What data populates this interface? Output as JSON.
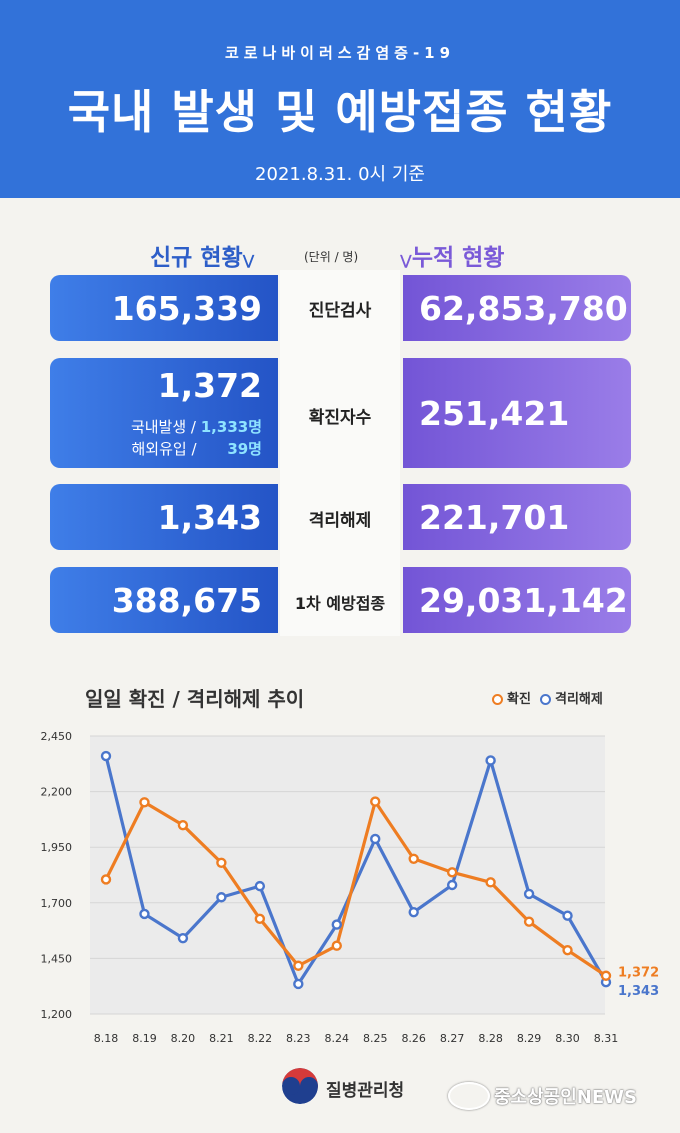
{
  "header": {
    "subtitle": "코로나바이러스감염증-19",
    "title": "국내 발생 및 예방접종 현황",
    "date": "2021.8.31. 0시 기준",
    "bg_color": "#3272d9"
  },
  "sections": {
    "new_label": "신규 현황",
    "cum_label": "누적 현황",
    "unit": "(단위 / 명)",
    "new_color": "#2d5ec8",
    "cum_color": "#7a5ad8"
  },
  "rows": [
    {
      "label": "진단검사",
      "new": "165,339",
      "cum": "62,853,780"
    },
    {
      "label": "확진자수",
      "new": "1,372",
      "cum": "251,421",
      "detail": [
        {
          "name": "국내발생 /",
          "value": "1,333명"
        },
        {
          "name": "해외유입 /",
          "value": "39명"
        }
      ]
    },
    {
      "label": "격리해제",
      "new": "1,343",
      "cum": "221,701"
    },
    {
      "label": "1차 예방접종",
      "new": "388,675",
      "cum": "29,031,142"
    }
  ],
  "chart_data": {
    "type": "line",
    "title": "일일 확진 / 격리해제 추이",
    "categories": [
      "8.18",
      "8.19",
      "8.20",
      "8.21",
      "8.22",
      "8.23",
      "8.24",
      "8.25",
      "8.26",
      "8.27",
      "8.28",
      "8.29",
      "8.30",
      "8.31"
    ],
    "ylim": [
      1200,
      2450
    ],
    "yticks": [
      "1,200",
      "1,450",
      "1,700",
      "1,950",
      "2,200",
      "2,450"
    ],
    "ytick_values": [
      1200,
      1450,
      1700,
      1950,
      2200,
      2450
    ],
    "grid": true,
    "legend_position": "top-right",
    "series": [
      {
        "name": "확진",
        "color": "#ee7d22",
        "values": [
          1805,
          2152,
          2049,
          1880,
          1628,
          1417,
          1507,
          2155,
          1898,
          1837,
          1792,
          1615,
          1487,
          1372
        ]
      },
      {
        "name": "격리해제",
        "color": "#4a76cc",
        "values": [
          2360,
          1650,
          1541,
          1725,
          1775,
          1335,
          1602,
          1987,
          1658,
          1780,
          2340,
          1740,
          1642,
          1343
        ]
      }
    ],
    "end_labels": [
      "1,372",
      "1,343"
    ]
  },
  "footer": {
    "agency": "질병관리청",
    "watermark": "중소상공인NEWS"
  }
}
